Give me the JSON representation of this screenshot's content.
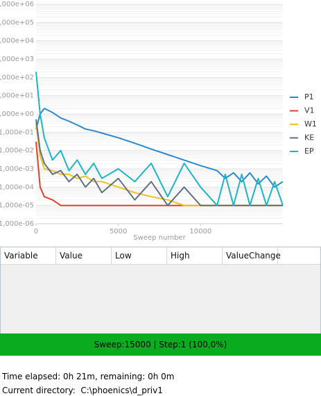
{
  "chart_data": {
    "type": "line",
    "ylim": [
      1e-06,
      1000000
    ],
    "yticks": [
      {
        "value": 1e-06,
        "label": "1,000e-06"
      },
      {
        "value": 1e-05,
        "label": "1,000e-05"
      },
      {
        "value": 0.0001,
        "label": "1,000e-04"
      },
      {
        "value": 0.001,
        "label": "1,000e-03"
      },
      {
        "value": 0.01,
        "label": "1,000e-02"
      },
      {
        "value": 0.1,
        "label": "1,000e-01"
      },
      {
        "value": 1,
        "label": "1,000e+00"
      },
      {
        "value": 10,
        "label": "1,000e+01"
      },
      {
        "value": 100,
        "label": "1,000e+02"
      },
      {
        "value": 1000,
        "label": "1,000e+03"
      },
      {
        "value": 10000,
        "label": "1,000e+04"
      },
      {
        "value": 100000,
        "label": "1,000e+05"
      },
      {
        "value": 1000000,
        "label": "1,000e+06"
      }
    ],
    "log_y": true,
    "grid": true,
    "xlim": [
      0,
      15000
    ],
    "xticks": [
      0,
      5000,
      10000
    ],
    "x_label": "Sweep number",
    "legend": "right",
    "x": [
      0,
      250,
      500,
      1000,
      1500,
      2000,
      2500,
      3000,
      3500,
      4000,
      5000,
      6000,
      7000,
      8000,
      9000,
      10000,
      11000,
      11500,
      12000,
      12500,
      13000,
      13500,
      14000,
      14500,
      15000
    ],
    "series": [
      {
        "name": "P1",
        "color": "#2a88d0",
        "values": [
          0.15,
          1,
          2,
          1.2,
          0.6,
          0.4,
          0.25,
          0.15,
          0.12,
          0.09,
          0.05,
          0.025,
          0.012,
          0.006,
          0.003,
          0.0015,
          0.0008,
          0.0003,
          0.0006,
          0.0002,
          0.0006,
          0.00015,
          0.0004,
          0.0001,
          0.0002
        ]
      },
      {
        "name": "V1",
        "color": "#e0402c",
        "values": [
          0.03,
          0.0001,
          3e-05,
          2e-05,
          1e-05,
          1e-05,
          1e-05,
          1e-05,
          1e-05,
          1e-05,
          1e-05,
          1e-05,
          1e-05,
          1e-05,
          1e-05,
          1e-05,
          1e-05,
          1e-05,
          1e-05,
          1e-05,
          1e-05,
          1e-05,
          1e-05,
          1e-05,
          1e-05
        ]
      },
      {
        "name": "W1",
        "color": "#f0c020",
        "values": [
          0.3,
          0.005,
          0.001,
          0.0008,
          0.0005,
          0.0005,
          0.0003,
          0.0004,
          0.0002,
          0.0002,
          0.0001,
          5e-05,
          3e-05,
          2e-05,
          1e-05,
          1e-05,
          1e-05,
          1e-05,
          1e-05,
          1e-05,
          1e-05,
          1e-05,
          1e-05,
          1e-05,
          1e-05
        ]
      },
      {
        "name": "KE",
        "color": "#607080",
        "values": [
          0.5,
          0.01,
          0.002,
          0.0005,
          0.0008,
          0.0002,
          0.0005,
          0.0001,
          0.0003,
          5e-05,
          0.0003,
          2e-05,
          0.0002,
          1e-05,
          0.0001,
          1e-05,
          1e-05,
          1e-05,
          1e-05,
          1e-05,
          1e-05,
          1e-05,
          1e-05,
          1e-05,
          1e-05
        ]
      },
      {
        "name": "EP",
        "color": "#1cb4c8",
        "values": [
          200,
          1,
          0.05,
          0.003,
          0.01,
          0.0008,
          0.003,
          0.0005,
          0.002,
          0.0003,
          0.001,
          0.0002,
          0.002,
          3e-05,
          0.002,
          0.0001,
          1e-05,
          0.0005,
          1e-05,
          0.0005,
          1e-05,
          0.0003,
          1e-05,
          0.0002,
          1e-05
        ]
      }
    ]
  },
  "table": {
    "columns": [
      "Variable",
      "Value",
      "Low",
      "High",
      "ValueChange"
    ]
  },
  "status": "Sweep:15000 | Step:1  (100,0%)",
  "footer": {
    "time": "Time elapsed: 0h 21m, remaining: 0h 0m",
    "directory": "Current directory:  C:\\phoenics\\d_priv1"
  }
}
